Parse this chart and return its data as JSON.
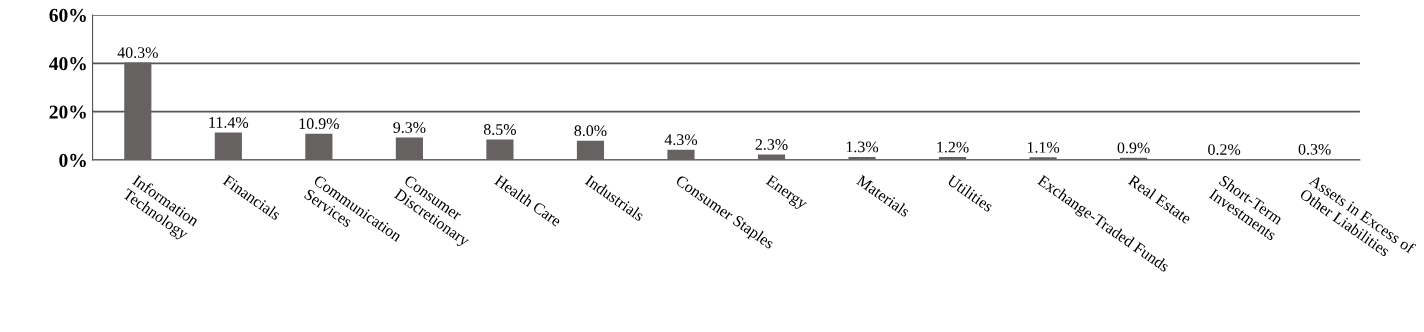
{
  "chart_data": {
    "type": "bar",
    "categories": [
      "Information\nTechnology",
      "Financials",
      "Communication\nServices",
      "Consumer\nDiscretionary",
      "Health Care",
      "Industrials",
      "Consumer Staples",
      "Energy",
      "Materials",
      "Utilities",
      "Exchange-Traded Funds",
      "Real Estate",
      "Short-Term\nInvestments",
      "Assets in Excess of\nOther Liabilities"
    ],
    "values": [
      40.3,
      11.4,
      10.9,
      9.3,
      8.5,
      8.0,
      4.3,
      2.3,
      1.3,
      1.2,
      1.1,
      0.9,
      0.2,
      0.3
    ],
    "value_labels": [
      "40.3%",
      "11.4%",
      "10.9%",
      "9.3%",
      "8.5%",
      "8.0%",
      "4.3%",
      "2.3%",
      "1.3%",
      "1.2%",
      "1.1%",
      "0.9%",
      "0.2%",
      "0.3%"
    ],
    "color": "#676262",
    "ylim": [
      0,
      60
    ],
    "yticks": [
      {
        "value": 0,
        "label": "0%"
      },
      {
        "value": 20,
        "label": "20%"
      },
      {
        "value": 40,
        "label": "40%"
      },
      {
        "value": 60,
        "label": "60%"
      }
    ],
    "grid": "y",
    "legend": false
  }
}
